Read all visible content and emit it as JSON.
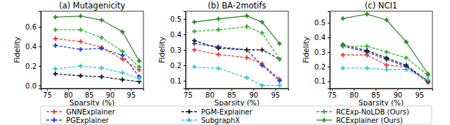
{
  "chart_data": [
    {
      "type": "line",
      "title": "(a) Mutagenicity",
      "x_label": "Sparsity (%)",
      "y_label": "Fidelity",
      "x": [
        77,
        83,
        88,
        93,
        97
      ],
      "xlim": [
        73.5,
        98
      ],
      "xticks": [
        75,
        80,
        85,
        90,
        95
      ],
      "ylim": [
        -0.03,
        0.76
      ],
      "yticks": [
        {
          "value": 0,
          "label": "0.0"
        },
        0.2,
        0.4,
        0.6
      ],
      "legend": "bottom",
      "series": [
        {
          "name": "GNNExplainer",
          "color": "#e8413a",
          "line_style": "dashed",
          "marker": "plus",
          "values": [
            0.48,
            0.45,
            0.39,
            0.27,
            0.16
          ]
        },
        {
          "name": "PGExplainer",
          "color": "#2b3fd8",
          "line_style": "dashed",
          "marker": "plus",
          "values": [
            0.41,
            0.37,
            0.38,
            0.31,
            0.09
          ]
        },
        {
          "name": "PGM-Explainer",
          "color": "#222222",
          "line_style": "dashed",
          "marker": "plus",
          "values": [
            0.12,
            0.1,
            0.09,
            0.06,
            0.04
          ]
        },
        {
          "name": "SubgraphX",
          "color": "#3cc6d4",
          "line_style": "dashed",
          "marker": "plus",
          "values": [
            0.17,
            0.2,
            0.18,
            0.13,
            0.07
          ]
        },
        {
          "name": "RCExp-NoLDB (Ours)",
          "color": "#33b533",
          "line_style": "dashed",
          "marker": "plus",
          "values": [
            0.57,
            0.57,
            0.49,
            0.35,
            0.19
          ]
        },
        {
          "name": "RCExplainer (Ours)",
          "color": "#2a8a2a",
          "line_style": "solid",
          "marker": "plus",
          "values": [
            0.7,
            0.71,
            0.67,
            0.55,
            0.25
          ]
        }
      ]
    },
    {
      "type": "line",
      "title": "(b) BA-2motifs",
      "x_label": "Sparsity (%)",
      "y_label": "Fidelity",
      "x": [
        76.5,
        82,
        88.5,
        92,
        96
      ],
      "xlim": [
        74.5,
        98
      ],
      "xticks": [
        75,
        80,
        85,
        90,
        95
      ],
      "ylim": [
        0.05,
        0.55
      ],
      "yticks": [
        0.1,
        0.2,
        0.3,
        0.4,
        0.5
      ],
      "legend": "bottom",
      "series": [
        {
          "name": "GNNExplainer",
          "color": "#e8413a",
          "line_style": "dashed",
          "marker": "plus",
          "values": [
            0.3,
            0.27,
            0.25,
            0.21,
            0.11
          ]
        },
        {
          "name": "PGExplainer",
          "color": "#2b3fd8",
          "line_style": "dashed",
          "marker": "plus",
          "values": [
            0.34,
            0.32,
            0.3,
            0.2,
            0.1
          ]
        },
        {
          "name": "PGM-Explainer",
          "color": "#222222",
          "line_style": "dashed",
          "marker": "plus",
          "values": [
            0.36,
            0.31,
            0.3,
            0.3,
            0.24
          ]
        },
        {
          "name": "SubgraphX",
          "color": "#3cc6d4",
          "line_style": "dashed",
          "marker": "plus",
          "values": [
            0.19,
            0.18,
            0.12,
            0.07,
            0.07
          ]
        },
        {
          "name": "RCExp-NoLDB (Ours)",
          "color": "#33b533",
          "line_style": "dashed",
          "marker": "plus",
          "values": [
            0.42,
            0.43,
            0.45,
            0.41,
            0.24
          ]
        },
        {
          "name": "RCExplainer (Ours)",
          "color": "#2a8a2a",
          "line_style": "solid",
          "marker": "plus",
          "values": [
            0.48,
            0.5,
            0.52,
            0.48,
            0.34
          ]
        }
      ]
    },
    {
      "type": "line",
      "title": "(c) NCI1",
      "x_label": "Sparsity (%)",
      "y_label": "Fidelity",
      "x": [
        77.5,
        83,
        87.5,
        92,
        97
      ],
      "xlim": [
        74.5,
        98
      ],
      "xticks": [
        75,
        80,
        85,
        90,
        95
      ],
      "ylim": [
        0.05,
        0.58
      ],
      "yticks": [
        0.1,
        0.2,
        0.3,
        0.4,
        0.5
      ],
      "legend": "bottom",
      "series": [
        {
          "name": "GNNExplainer",
          "color": "#e8413a",
          "line_style": "dashed",
          "marker": "plus",
          "values": [
            0.28,
            0.28,
            0.21,
            0.2,
            0.09
          ]
        },
        {
          "name": "PGExplainer",
          "color": "#2b3fd8",
          "line_style": "dashed",
          "marker": "plus",
          "values": [
            0.34,
            0.3,
            0.25,
            0.2,
            0.1
          ]
        },
        {
          "name": "PGM-Explainer",
          "color": "#222222",
          "line_style": "dashed",
          "marker": "plus",
          "values": [
            0.35,
            0.31,
            0.26,
            0.21,
            0.1
          ]
        },
        {
          "name": "SubgraphX",
          "color": "#3cc6d4",
          "line_style": "dashed",
          "marker": "plus",
          "values": [
            0.19,
            0.19,
            0.18,
            0.18,
            0.11
          ]
        },
        {
          "name": "RCExp-NoLDB (Ours)",
          "color": "#33b533",
          "line_style": "dashed",
          "marker": "plus",
          "values": [
            0.34,
            0.34,
            0.3,
            0.26,
            0.14
          ]
        },
        {
          "name": "RCExplainer (Ours)",
          "color": "#2a8a2a",
          "line_style": "solid",
          "marker": "plus",
          "values": [
            0.53,
            0.56,
            0.52,
            0.37,
            0.15
          ]
        }
      ]
    }
  ]
}
